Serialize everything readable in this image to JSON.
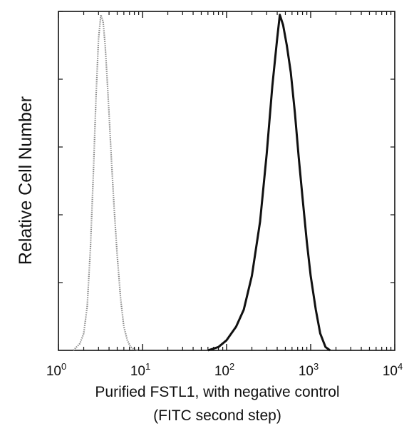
{
  "chart_data": {
    "type": "line",
    "xlabel": [
      "Purified FSTL1, with negative control",
      "(FITC second step)"
    ],
    "ylabel": "Relative Cell Number",
    "x_scale": "log",
    "xlim": [
      1,
      10000
    ],
    "ylim": [
      0,
      100
    ],
    "x_ticks": [
      {
        "base": "10",
        "exp": "0"
      },
      {
        "base": "10",
        "exp": "1"
      },
      {
        "base": "10",
        "exp": "2"
      },
      {
        "base": "10",
        "exp": "3"
      },
      {
        "base": "10",
        "exp": "4"
      }
    ],
    "grid": false,
    "legend": "none",
    "series": [
      {
        "style": "dotted-gray",
        "color": "#8a8a8a",
        "x": [
          1.5,
          1.8,
          2.0,
          2.2,
          2.4,
          2.6,
          2.8,
          3.0,
          3.2,
          3.4,
          3.6,
          3.8,
          4.0,
          4.3,
          4.6,
          5.0,
          5.5,
          6.0,
          6.6,
          7.2,
          8.0,
          9.0
        ],
        "y": [
          0,
          2,
          5,
          13,
          30,
          52,
          75,
          92,
          99,
          97,
          90,
          80,
          70,
          55,
          42,
          28,
          15,
          7,
          3,
          1,
          0.3,
          0
        ]
      },
      {
        "style": "solid-black",
        "color": "#111111",
        "x": [
          60,
          80,
          100,
          130,
          160,
          200,
          250,
          300,
          350,
          400,
          430,
          470,
          520,
          580,
          650,
          720,
          800,
          900,
          1000,
          1150,
          1300,
          1500,
          1700
        ],
        "y": [
          0,
          1,
          3,
          7,
          12,
          22,
          38,
          58,
          78,
          92,
          99,
          96,
          90,
          82,
          70,
          57,
          45,
          32,
          22,
          12,
          5,
          1,
          0
        ]
      }
    ]
  }
}
